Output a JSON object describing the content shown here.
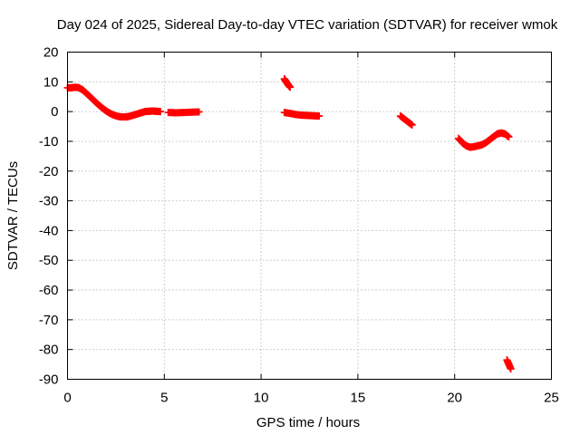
{
  "chart_data": {
    "type": "scatter",
    "title": "Day 024 of 2025, Sidereal Day-to-day VTEC variation (SDTVAR) for receiver wmok",
    "xlabel": "GPS time / hours",
    "ylabel": "SDTVAR / TECUs",
    "xlim": [
      0,
      25
    ],
    "ylim": [
      -90,
      20
    ],
    "xticks": [
      0,
      5,
      10,
      15,
      20,
      25
    ],
    "yticks": [
      20,
      10,
      0,
      -10,
      -20,
      -30,
      -40,
      -50,
      -60,
      -70,
      -80,
      -90
    ],
    "grid": true,
    "marker": "+",
    "series": [
      {
        "name": "SDTVAR",
        "color": "#ff0000",
        "segments": [
          {
            "x": [
              0.0,
              0.2,
              0.4,
              0.6,
              0.8,
              1.0,
              1.2,
              1.4,
              1.6,
              1.8,
              2.0,
              2.2,
              2.4,
              2.6,
              2.8,
              3.0,
              3.2,
              3.4,
              3.6,
              3.8,
              4.0,
              4.2,
              4.4,
              4.6,
              4.8
            ],
            "y": [
              8.0,
              8.0,
              8.2,
              8.0,
              7.2,
              6.0,
              4.8,
              3.5,
              2.3,
              1.2,
              0.2,
              -0.6,
              -1.2,
              -1.6,
              -1.8,
              -1.8,
              -1.6,
              -1.2,
              -0.8,
              -0.4,
              0.0,
              0.1,
              0.2,
              0.1,
              0.0
            ]
          },
          {
            "x": [
              5.2,
              5.6,
              6.0,
              6.4,
              6.8
            ],
            "y": [
              -0.3,
              -0.4,
              -0.3,
              -0.2,
              -0.1
            ]
          },
          {
            "x": [
              11.2,
              11.3,
              11.4,
              11.5
            ],
            "y": [
              11.0,
              10.0,
              9.0,
              8.2
            ]
          },
          {
            "x": [
              11.2,
              11.5,
              11.8,
              12.1,
              12.4,
              12.7,
              13.0
            ],
            "y": [
              -0.3,
              -0.6,
              -1.0,
              -1.2,
              -1.3,
              -1.4,
              -1.5
            ]
          },
          {
            "x": [
              17.2,
              17.4,
              17.6,
              17.8
            ],
            "y": [
              -1.5,
              -2.5,
              -3.5,
              -4.5
            ]
          },
          {
            "x": [
              20.2,
              20.4,
              20.6,
              20.8,
              21.0,
              21.2,
              21.4,
              21.6,
              21.8,
              22.0,
              22.2,
              22.4,
              22.6,
              22.8
            ],
            "y": [
              -9.0,
              -10.5,
              -11.5,
              -12.0,
              -11.8,
              -11.5,
              -11.2,
              -10.5,
              -9.5,
              -8.5,
              -7.5,
              -7.2,
              -7.5,
              -8.5
            ]
          },
          {
            "x": [
              22.7,
              22.8,
              22.9
            ],
            "y": [
              -83.5,
              -85.0,
              -86.5
            ]
          }
        ]
      }
    ]
  }
}
